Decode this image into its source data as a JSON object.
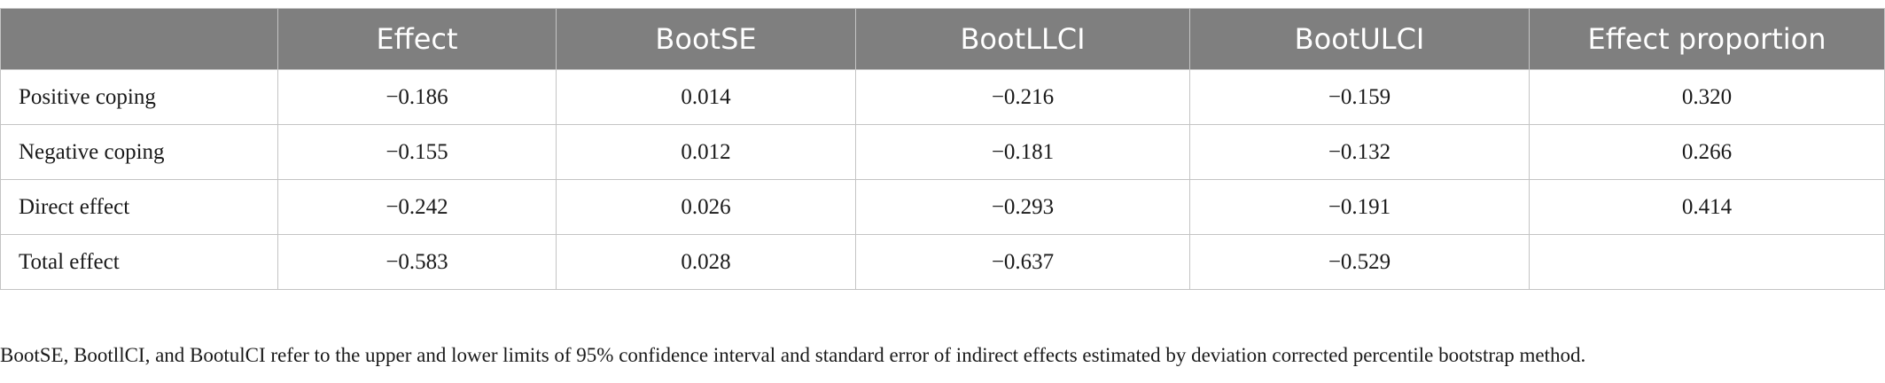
{
  "table": {
    "columns": [
      "Effect",
      "BootSE",
      "BootLLCI",
      "BootULCI",
      "Effect proportion"
    ],
    "rows": [
      {
        "label": "Positive coping",
        "values": [
          "−0.186",
          "0.014",
          "−0.216",
          "−0.159",
          "0.320"
        ]
      },
      {
        "label": "Negative coping",
        "values": [
          "−0.155",
          "0.012",
          "−0.181",
          "−0.132",
          "0.266"
        ]
      },
      {
        "label": "Direct effect",
        "values": [
          "−0.242",
          "0.026",
          "−0.293",
          "−0.191",
          "0.414"
        ]
      },
      {
        "label": "Total effect",
        "values": [
          "−0.583",
          "0.028",
          "−0.637",
          "−0.529"
        ]
      }
    ]
  },
  "footnote": "BootSE, BootllCI, and BootulCI refer to the upper and lower limits of 95% confidence interval and standard error of indirect effects estimated by deviation corrected percentile bootstrap method."
}
